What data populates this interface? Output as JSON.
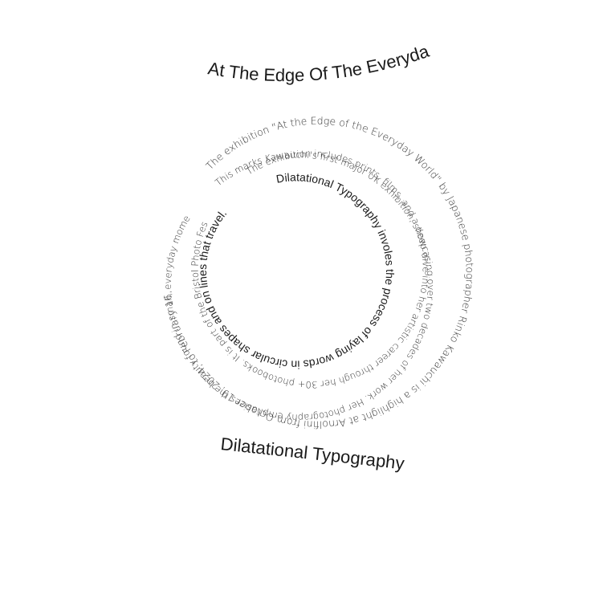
{
  "title_top": "At The Edge Of The Everyday",
  "title_bottom": "Dilatational Typography",
  "spiral": {
    "ring1": "The exhibition \"At the Edge of the Everyday World\" by Japanese photographer Rinko Kawauchi is a highlight at Arnolfini from October 19, 2024, to February 16, 2025.",
    "ring2": "This marks Kawauchi's first major UK exhibition, showcasing over two decades of her work. Her photography emphasizes the beauty found in small, everyday moments, blending",
    "ring3": "The exhibition includes prints, films, and a deep dive into her artistic career through her 30+ photobooks. It is part of the Bristol Photo Festival, which features",
    "ring4": "Dilatational Typography involes the process of laying words in circular shapes and on lines that travel."
  },
  "colors": {
    "text_dark": "#1a1a1a",
    "text_light": "#333333",
    "background": "#ffffff"
  }
}
